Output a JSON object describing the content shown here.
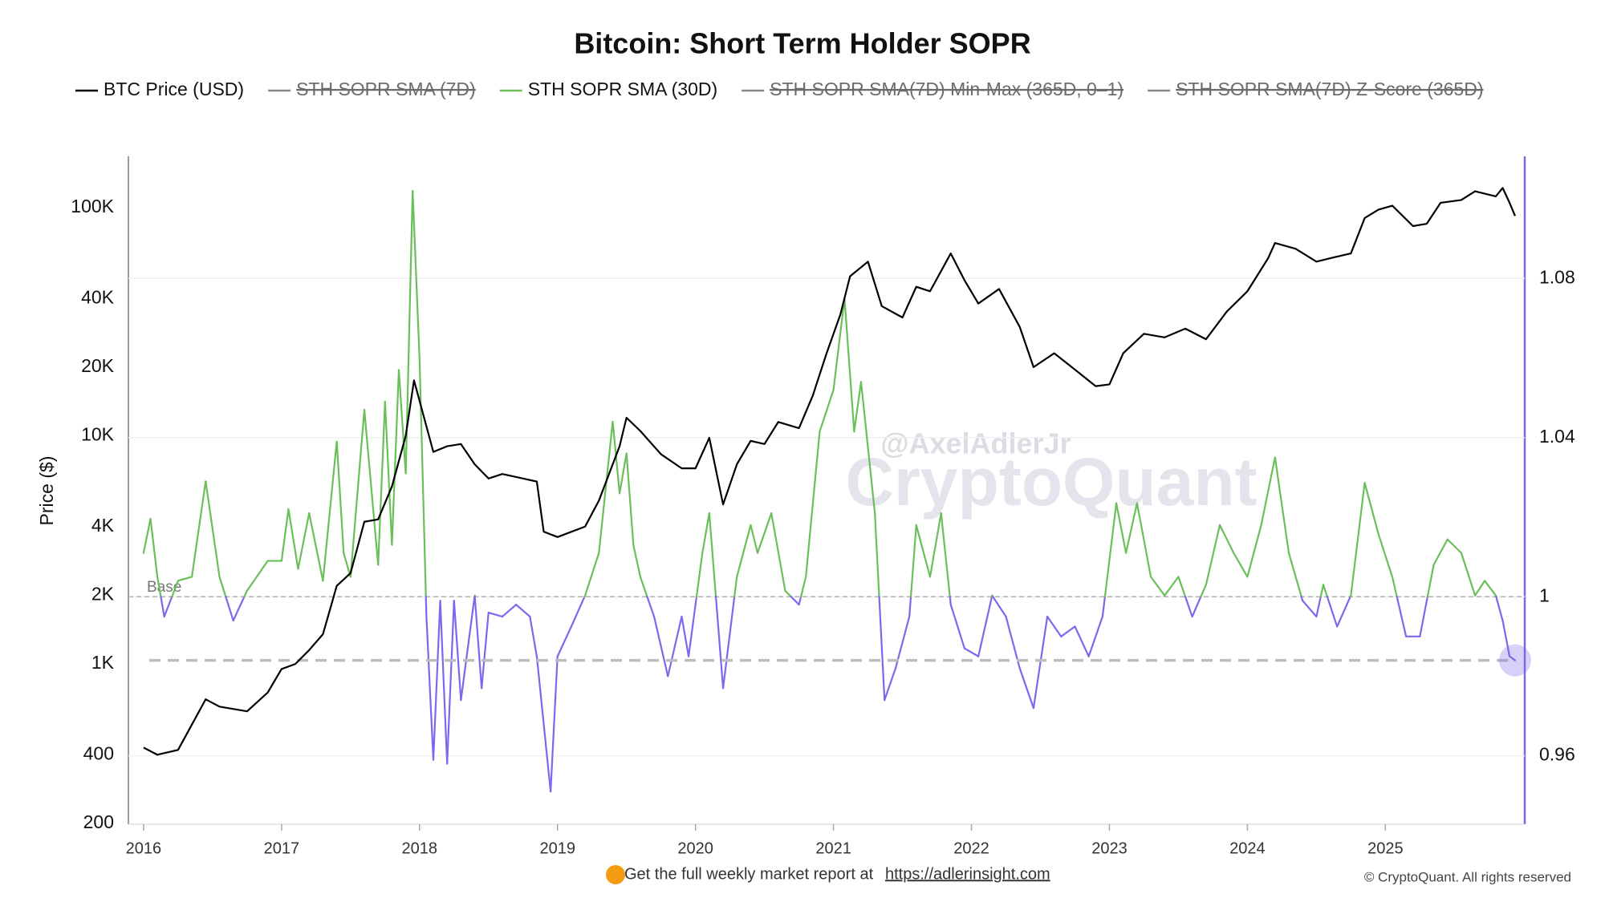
{
  "chart_data": {
    "type": "line",
    "title": "Bitcoin: Short Term Holder SOPR",
    "y_label": "Price ($)",
    "y_scale": "log",
    "xlim": [
      2015.89,
      2026.01
    ],
    "xticks": [
      2016,
      2017,
      2018,
      2019,
      2020,
      2021,
      2022,
      2023,
      2024,
      2025
    ],
    "ylim": [
      200,
      167800
    ],
    "yticks": [
      {
        "value": 200,
        "label": "200"
      },
      {
        "value": 400,
        "label": "400"
      },
      {
        "value": 1000,
        "label": "1K"
      },
      {
        "value": 2000,
        "label": "2K"
      },
      {
        "value": 4000,
        "label": "4K"
      },
      {
        "value": 10000,
        "label": "10K"
      },
      {
        "value": 20000,
        "label": "20K"
      },
      {
        "value": 40000,
        "label": "40K"
      },
      {
        "value": 100000,
        "label": "100K"
      }
    ],
    "y2lim": [
      0.943,
      1.1107
    ],
    "y2ticks": [
      0.96,
      1,
      1.04,
      1.08
    ],
    "grid": true,
    "base_line": {
      "value": 1,
      "label": "Base"
    },
    "hidden_series": [
      "STH SOPR SMA (7D)",
      "STH SOPR SMA(7D) Min-Max (365D, 0–1)",
      "STH SOPR SMA(7D) Z-Score (365D)"
    ],
    "hidden_color": "#6b6b6b",
    "series": [
      {
        "name": "BTC Price (USD)",
        "color": "#000000",
        "axis": "y",
        "x": [
          2016.0,
          2016.1,
          2016.25,
          2016.45,
          2016.55,
          2016.75,
          2016.9,
          2017.0,
          2017.1,
          2017.2,
          2017.3,
          2017.4,
          2017.5,
          2017.6,
          2017.7,
          2017.8,
          2017.9,
          2017.96,
          2018.05,
          2018.1,
          2018.2,
          2018.3,
          2018.4,
          2018.5,
          2018.6,
          2018.75,
          2018.85,
          2018.9,
          2019.0,
          2019.2,
          2019.3,
          2019.45,
          2019.5,
          2019.6,
          2019.75,
          2019.9,
          2020.0,
          2020.1,
          2020.2,
          2020.3,
          2020.4,
          2020.5,
          2020.6,
          2020.75,
          2020.85,
          2020.95,
          2021.05,
          2021.12,
          2021.25,
          2021.35,
          2021.5,
          2021.6,
          2021.7,
          2021.85,
          2021.95,
          2022.05,
          2022.2,
          2022.35,
          2022.45,
          2022.6,
          2022.75,
          2022.9,
          2023.0,
          2023.1,
          2023.25,
          2023.4,
          2023.55,
          2023.7,
          2023.85,
          2024.0,
          2024.15,
          2024.2,
          2024.35,
          2024.5,
          2024.6,
          2024.75,
          2024.85,
          2024.95,
          2025.05,
          2025.2,
          2025.3,
          2025.4,
          2025.55,
          2025.65,
          2025.8,
          2025.85,
          2025.9,
          2025.94
        ],
        "values": [
          430,
          400,
          420,
          700,
          650,
          620,
          750,
          950,
          1000,
          1150,
          1350,
          2200,
          2500,
          4200,
          4300,
          6000,
          10000,
          17500,
          11000,
          8500,
          9000,
          9200,
          7500,
          6500,
          6800,
          6500,
          6300,
          3800,
          3600,
          4000,
          5200,
          9000,
          12000,
          10500,
          8300,
          7200,
          7200,
          9800,
          5000,
          7500,
          9500,
          9200,
          11500,
          10800,
          15000,
          23000,
          34000,
          50000,
          58000,
          37000,
          33000,
          45000,
          43000,
          63000,
          48000,
          38000,
          44000,
          30000,
          20000,
          23000,
          19500,
          16500,
          16800,
          23000,
          28000,
          27000,
          29500,
          26500,
          35000,
          43000,
          60000,
          70000,
          66000,
          58000,
          60000,
          63000,
          90000,
          98000,
          102000,
          83000,
          85000,
          105000,
          108000,
          118000,
          112000,
          122000,
          105000,
          92000
        ]
      },
      {
        "name": "STH SOPR SMA (30D)",
        "color": "#6abf5a",
        "color_below": "#7b68ee",
        "axis": "y2",
        "x": [
          2016.0,
          2016.05,
          2016.1,
          2016.15,
          2016.25,
          2016.35,
          2016.45,
          2016.55,
          2016.65,
          2016.75,
          2016.9,
          2017.0,
          2017.05,
          2017.12,
          2017.2,
          2017.3,
          2017.4,
          2017.45,
          2017.5,
          2017.55,
          2017.6,
          2017.7,
          2017.75,
          2017.8,
          2017.85,
          2017.9,
          2017.95,
          2018.0,
          2018.05,
          2018.1,
          2018.15,
          2018.2,
          2018.25,
          2018.3,
          2018.4,
          2018.45,
          2018.5,
          2018.6,
          2018.7,
          2018.8,
          2018.85,
          2018.95,
          2019.0,
          2019.1,
          2019.2,
          2019.3,
          2019.4,
          2019.45,
          2019.5,
          2019.55,
          2019.6,
          2019.7,
          2019.8,
          2019.9,
          2019.95,
          2020.05,
          2020.1,
          2020.2,
          2020.3,
          2020.4,
          2020.45,
          2020.55,
          2020.65,
          2020.75,
          2020.8,
          2020.9,
          2021.0,
          2021.08,
          2021.15,
          2021.2,
          2021.3,
          2021.37,
          2021.45,
          2021.55,
          2021.6,
          2021.7,
          2021.78,
          2021.85,
          2021.95,
          2022.05,
          2022.15,
          2022.25,
          2022.35,
          2022.45,
          2022.55,
          2022.65,
          2022.75,
          2022.85,
          2022.95,
          2023.05,
          2023.12,
          2023.2,
          2023.3,
          2023.4,
          2023.5,
          2023.6,
          2023.7,
          2023.8,
          2023.9,
          2024.0,
          2024.1,
          2024.2,
          2024.3,
          2024.4,
          2024.5,
          2024.55,
          2024.65,
          2024.75,
          2024.85,
          2024.95,
          2025.05,
          2025.15,
          2025.25,
          2025.35,
          2025.45,
          2025.55,
          2025.65,
          2025.72,
          2025.8,
          2025.85,
          2025.9,
          2025.94
        ],
        "values": [
          1.011,
          1.0196,
          1.005,
          0.995,
          1.004,
          1.005,
          1.029,
          1.005,
          0.994,
          1.0015,
          1.009,
          1.009,
          1.022,
          1.007,
          1.021,
          1.004,
          1.039,
          1.011,
          1.005,
          1.026,
          1.047,
          1.008,
          1.049,
          1.013,
          1.057,
          1.031,
          1.102,
          1.06,
          0.995,
          0.959,
          0.999,
          0.958,
          0.999,
          0.974,
          1.0003,
          0.977,
          0.996,
          0.995,
          0.998,
          0.995,
          0.985,
          0.951,
          0.985,
          0.9925,
          1.0003,
          1.011,
          1.044,
          1.026,
          1.036,
          1.013,
          1.005,
          0.995,
          0.98,
          0.995,
          0.985,
          1.011,
          1.021,
          0.977,
          1.005,
          1.018,
          1.011,
          1.021,
          1.0015,
          0.998,
          1.005,
          1.0415,
          1.052,
          1.075,
          1.0415,
          1.054,
          1.021,
          0.974,
          0.982,
          0.995,
          1.018,
          1.005,
          1.021,
          0.998,
          0.987,
          0.985,
          1.0003,
          0.995,
          0.982,
          0.972,
          0.995,
          0.99,
          0.9925,
          0.985,
          0.995,
          1.0235,
          1.011,
          1.0235,
          1.005,
          1.0003,
          1.005,
          0.995,
          1.003,
          1.018,
          1.011,
          1.005,
          1.018,
          1.035,
          1.011,
          0.999,
          0.995,
          1.003,
          0.9925,
          1.0003,
          1.0286,
          1.0157,
          1.005,
          0.99,
          0.99,
          1.008,
          1.0144,
          1.011,
          1.0003,
          1.004,
          1.0003,
          0.994,
          0.985,
          0.984
        ]
      }
    ],
    "watermark": "CryptoQuant",
    "author": "@AxelAdlerJr",
    "footer_text": "Get the full weekly market report at",
    "footer_link": "https://adlerinsight.com",
    "copyright": "© CryptoQuant. All rights reserved"
  }
}
